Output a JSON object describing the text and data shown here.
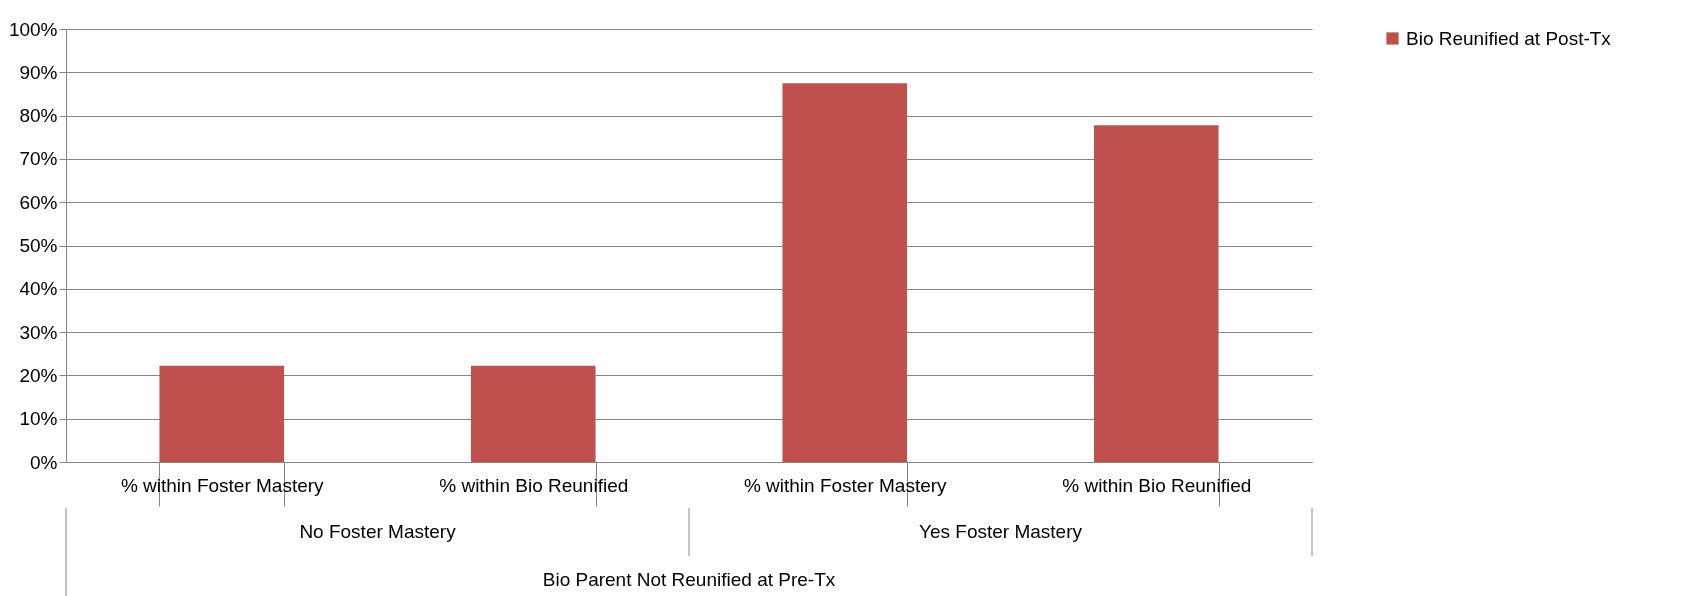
{
  "chart_data": {
    "type": "bar",
    "categories": [
      "% within Foster Mastery",
      "% within Bio Reunified",
      "% within Foster Mastery",
      "% within Bio Reunified"
    ],
    "series": [
      {
        "name": "Bio Reunified at Post-Tx",
        "color": "#c0504d",
        "values": [
          22.2,
          22.2,
          87.5,
          77.8
        ]
      }
    ],
    "ylim": [
      0,
      100
    ],
    "yticks": [
      {
        "value": 0,
        "label": "0%"
      },
      {
        "value": 10,
        "label": "10%"
      },
      {
        "value": 20,
        "label": "20%"
      },
      {
        "value": 30,
        "label": "30%"
      },
      {
        "value": 40,
        "label": "40%"
      },
      {
        "value": 50,
        "label": "50%"
      },
      {
        "value": 60,
        "label": "60%"
      },
      {
        "value": 70,
        "label": "70%"
      },
      {
        "value": 80,
        "label": "80%"
      },
      {
        "value": 90,
        "label": "90%"
      },
      {
        "value": 100,
        "label": "100%"
      }
    ],
    "grid": "y",
    "legend": "right",
    "annotations": [
      "No Foster Mastery",
      "Yes Foster Mastery",
      "Bio Parent Not Reunified at Pre-Tx"
    ]
  }
}
